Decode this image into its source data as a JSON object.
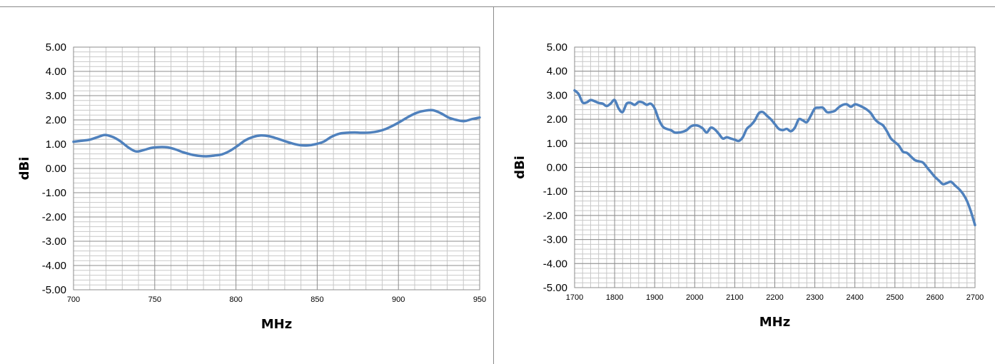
{
  "chart_data": [
    {
      "type": "line",
      "xlabel": "MHz",
      "ylabel": "dBi",
      "xlim": [
        700,
        960
      ],
      "ylim": [
        -5,
        5
      ],
      "x_ticks": [
        "700",
        "750",
        "800",
        "850",
        "900",
        "950"
      ],
      "y_ticks": [
        "5.00",
        "4.00",
        "3.00",
        "2.00",
        "1.00",
        "0.00",
        "-1.00",
        "-2.00",
        "-3.00",
        "-4.00",
        "-5.00"
      ],
      "grid": true,
      "line_color": "#4f81bd",
      "x": [
        700,
        705,
        710,
        715,
        720,
        725,
        730,
        735,
        740,
        745,
        750,
        755,
        760,
        765,
        770,
        775,
        780,
        785,
        790,
        795,
        800,
        805,
        810,
        815,
        820,
        825,
        830,
        835,
        840,
        845,
        850,
        855,
        860,
        865,
        870,
        875,
        880,
        885,
        890,
        895,
        900,
        905,
        910,
        915,
        920,
        925,
        930,
        935,
        940,
        945,
        950,
        955,
        960
      ],
      "y": [
        1.1,
        1.14,
        1.18,
        1.28,
        1.38,
        1.3,
        1.12,
        0.87,
        0.7,
        0.76,
        0.85,
        0.88,
        0.87,
        0.79,
        0.67,
        0.58,
        0.52,
        0.5,
        0.53,
        0.58,
        0.72,
        0.93,
        1.16,
        1.3,
        1.36,
        1.33,
        1.24,
        1.13,
        1.03,
        0.96,
        0.95,
        1.0,
        1.1,
        1.3,
        1.43,
        1.47,
        1.48,
        1.47,
        1.48,
        1.53,
        1.63,
        1.78,
        1.96,
        2.15,
        2.3,
        2.38,
        2.4,
        2.28,
        2.1,
        2.0,
        1.95,
        2.03,
        2.1
      ]
    },
    {
      "type": "line",
      "xlabel": "MHz",
      "ylabel": "dBi",
      "xlim": [
        1700,
        2700
      ],
      "ylim": [
        -5,
        5
      ],
      "x_ticks": [
        "1700",
        "1800",
        "1900",
        "2000",
        "2100",
        "2200",
        "2300",
        "2400",
        "2500",
        "2600",
        "2700"
      ],
      "y_ticks": [
        "5.00",
        "4.00",
        "3.00",
        "2.00",
        "1.00",
        "0.00",
        "-1.00",
        "-2.00",
        "-3.00",
        "-4.00",
        "-5.00"
      ],
      "grid": true,
      "line_color": "#4f81bd",
      "x": [
        1700,
        1710,
        1720,
        1730,
        1740,
        1750,
        1760,
        1770,
        1780,
        1790,
        1800,
        1810,
        1820,
        1830,
        1840,
        1850,
        1860,
        1870,
        1880,
        1890,
        1900,
        1910,
        1920,
        1930,
        1940,
        1950,
        1960,
        1970,
        1980,
        1990,
        2000,
        2010,
        2020,
        2030,
        2040,
        2050,
        2060,
        2070,
        2080,
        2090,
        2100,
        2110,
        2120,
        2130,
        2140,
        2150,
        2160,
        2170,
        2180,
        2190,
        2200,
        2210,
        2220,
        2230,
        2240,
        2250,
        2260,
        2270,
        2280,
        2290,
        2300,
        2310,
        2320,
        2330,
        2340,
        2350,
        2360,
        2370,
        2380,
        2390,
        2400,
        2410,
        2420,
        2430,
        2440,
        2450,
        2460,
        2470,
        2480,
        2490,
        2500,
        2510,
        2520,
        2530,
        2540,
        2550,
        2560,
        2570,
        2580,
        2590,
        2600,
        2610,
        2620,
        2630,
        2640,
        2650,
        2660,
        2670,
        2680,
        2690,
        2700
      ],
      "y": [
        3.2,
        3.05,
        2.7,
        2.7,
        2.8,
        2.75,
        2.68,
        2.65,
        2.55,
        2.65,
        2.8,
        2.45,
        2.3,
        2.65,
        2.68,
        2.6,
        2.72,
        2.7,
        2.6,
        2.65,
        2.45,
        2.0,
        1.7,
        1.6,
        1.55,
        1.45,
        1.45,
        1.48,
        1.55,
        1.7,
        1.75,
        1.72,
        1.62,
        1.45,
        1.65,
        1.58,
        1.4,
        1.2,
        1.25,
        1.2,
        1.15,
        1.1,
        1.25,
        1.6,
        1.75,
        1.95,
        2.25,
        2.3,
        2.15,
        2.0,
        1.8,
        1.6,
        1.55,
        1.6,
        1.5,
        1.65,
        2.0,
        1.95,
        1.88,
        2.15,
        2.45,
        2.48,
        2.48,
        2.3,
        2.3,
        2.35,
        2.5,
        2.6,
        2.62,
        2.52,
        2.62,
        2.58,
        2.5,
        2.4,
        2.25,
        2.0,
        1.85,
        1.75,
        1.5,
        1.2,
        1.05,
        0.9,
        0.65,
        0.6,
        0.45,
        0.3,
        0.25,
        0.2,
        0.0,
        -0.2,
        -0.4,
        -0.55,
        -0.7,
        -0.65,
        -0.6,
        -0.75,
        -0.9,
        -1.1,
        -1.4,
        -1.85,
        -2.4
      ]
    }
  ]
}
